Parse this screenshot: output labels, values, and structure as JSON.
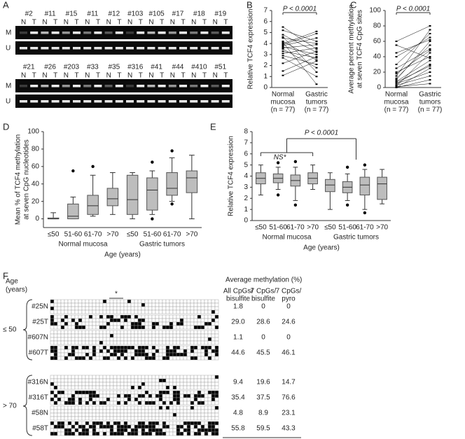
{
  "panel_labels": [
    "A",
    "B",
    "C",
    "D",
    "E",
    "F"
  ],
  "panel_a": {
    "samples_top": [
      "#2",
      "#11",
      "#15",
      "#11",
      "#12",
      "#103",
      "#105",
      "#17",
      "#18",
      "#19"
    ],
    "samples_bottom": [
      "#21",
      "#26",
      "#203",
      "#33",
      "#35",
      "#316",
      "#41",
      "#44",
      "#410",
      "#51"
    ],
    "lane_labels": [
      "N",
      "T"
    ],
    "row_labels": [
      "M",
      "U"
    ]
  },
  "chart_data": [
    {
      "type": "paired",
      "ylabel": [
        "Relative TCF4 expression"
      ],
      "annotation": "P < 0.0001",
      "categories": [
        [
          "Normal",
          "mucosa",
          "(n = 77)"
        ],
        [
          "Gastric",
          "tumors",
          "(n = 77)"
        ]
      ],
      "values": [
        [
          4.8,
          4.5,
          4.2,
          3.9,
          3.7,
          3.5,
          5.2,
          3.1,
          2.9,
          4.0,
          3.3,
          2.2,
          4.6,
          3.6,
          1.5,
          4.1,
          3.8,
          5.5,
          2.7,
          1.1
        ],
        [
          3.2,
          4.0,
          2.5,
          4.9,
          3.0,
          1.8,
          4.2,
          3.6,
          2.1,
          5.1,
          2.7,
          3.3,
          1.4,
          3.9,
          2.8,
          0.3,
          4.5,
          3.5,
          1.0,
          2.4
        ]
      ],
      "ylim": [
        0,
        7
      ],
      "yticks": [
        0,
        1,
        2,
        3,
        4,
        5,
        6,
        7
      ],
      "color": "#000000"
    },
    {
      "type": "paired",
      "ylabel": [
        "Average percent methylation",
        "at seven TCF4 CpG sites"
      ],
      "annotation": "P < 0.0001",
      "categories": [
        [
          "Normal",
          "mucosa",
          "(n = 77)"
        ],
        [
          "Gastric",
          "tumors",
          "(n = 77)"
        ]
      ],
      "values": [
        [
          2,
          5,
          10,
          0,
          15,
          25,
          3,
          40,
          8,
          0,
          20,
          60,
          12,
          5,
          30,
          1,
          18,
          45,
          7,
          55
        ],
        [
          45,
          30,
          60,
          25,
          75,
          50,
          15,
          65,
          35,
          10,
          40,
          80,
          55,
          20,
          70,
          5,
          48,
          62,
          28,
          38
        ]
      ],
      "ylim": [
        0,
        100
      ],
      "yticks": [
        0,
        20,
        40,
        60,
        80,
        100
      ],
      "color": "#000000"
    },
    {
      "type": "box",
      "ylabel": [
        "Mean % of TCF4 methylation",
        "at seven CpG nucleotides"
      ],
      "xlabel": "Age (years)",
      "categories": [
        "≤50",
        "51-60",
        "61-70",
        ">70",
        "≤50",
        "51-60",
        "61-70",
        ">70"
      ],
      "groups": [
        "Normal mucosa",
        "Gastric tumors"
      ],
      "boxes": [
        {
          "min": 0,
          "q1": 0,
          "median": 0,
          "q3": 1,
          "max": 7,
          "outliers": []
        },
        {
          "min": 0,
          "q1": 0,
          "median": 3,
          "q3": 17,
          "max": 25,
          "outliers": [
            55
          ]
        },
        {
          "min": 3,
          "q1": 5,
          "median": 15,
          "q3": 27,
          "max": 50,
          "outliers": [
            60
          ]
        },
        {
          "min": 5,
          "q1": 15,
          "median": 23,
          "q3": 35,
          "max": 53,
          "outliers": []
        },
        {
          "min": 0,
          "q1": 5,
          "median": 22,
          "q3": 50,
          "max": 53,
          "outliers": []
        },
        {
          "min": 5,
          "q1": 10,
          "median": 33,
          "q3": 47,
          "max": 55,
          "outliers": [
            0,
            65
          ]
        },
        {
          "min": 20,
          "q1": 27,
          "median": 35,
          "q3": 53,
          "max": 70,
          "outliers": [
            17,
            78
          ]
        },
        {
          "min": 0,
          "q1": 30,
          "median": 47,
          "q3": 55,
          "max": 73,
          "outliers": []
        }
      ],
      "ylim": [
        -10,
        100
      ],
      "yticks": [
        0,
        20,
        40,
        60,
        80,
        100
      ],
      "color": "#bdbdbd"
    },
    {
      "type": "box",
      "ylabel": [
        "Relative TCF4 expression"
      ],
      "xlabel": "Age (years)",
      "annotations": [
        "P < 0.0001",
        "NS*"
      ],
      "categories": [
        "≤50",
        "51-60",
        "61-70",
        ">70",
        "≤50",
        "51-60",
        "61-70",
        ">70"
      ],
      "groups": [
        "Normal mucosa",
        "Gastric tumors"
      ],
      "boxes": [
        {
          "min": 2.3,
          "q1": 3.3,
          "median": 3.8,
          "q3": 4.3,
          "max": 5.0,
          "outliers": []
        },
        {
          "min": 2.8,
          "q1": 3.4,
          "median": 3.8,
          "q3": 4.2,
          "max": 4.8,
          "outliers": [
            2.3,
            5.2
          ]
        },
        {
          "min": 1.8,
          "q1": 3.1,
          "median": 3.6,
          "q3": 4.1,
          "max": 4.8,
          "outliers": [
            1.4,
            5.3
          ]
        },
        {
          "min": 2.8,
          "q1": 3.3,
          "median": 3.8,
          "q3": 4.3,
          "max": 5.0,
          "outliers": []
        },
        {
          "min": 1.0,
          "q1": 2.6,
          "median": 3.2,
          "q3": 3.7,
          "max": 4.3,
          "outliers": []
        },
        {
          "min": 1.8,
          "q1": 2.5,
          "median": 3.0,
          "q3": 3.5,
          "max": 4.2,
          "outliers": [
            1.4,
            4.8
          ]
        },
        {
          "min": 1.0,
          "q1": 2.3,
          "median": 3.2,
          "q3": 3.9,
          "max": 4.6,
          "outliers": [
            0.7,
            5.0
          ]
        },
        {
          "min": 1.5,
          "q1": 1.9,
          "median": 3.3,
          "q3": 3.9,
          "max": 4.6,
          "outliers": []
        }
      ],
      "ylim": [
        0,
        8
      ],
      "yticks": [
        0,
        1,
        2,
        3,
        4,
        5,
        6,
        7,
        8
      ],
      "color": "#bdbdbd"
    }
  ],
  "panel_f": {
    "age_label": [
      "Age",
      "(years)"
    ],
    "groups": [
      "≤ 50",
      "> 70"
    ],
    "asterisk": "*",
    "table_title": "Average methylation (%)",
    "columns": [
      [
        "All CpGs/",
        "bisulfite"
      ],
      [
        "7 CpGs/",
        "bisulfite"
      ],
      [
        "7 CpGs/",
        "pyro"
      ]
    ],
    "rows": [
      [
        "#25N",
        "1.8",
        "0",
        "0"
      ],
      [
        "#25T",
        "29.0",
        "28.6",
        "24.6"
      ],
      [
        "#607N",
        "1.1",
        "0",
        "0"
      ],
      [
        "#607T",
        "44.6",
        "45.5",
        "46.1"
      ],
      [
        "#316N",
        "9.4",
        "19.6",
        "14.7"
      ],
      [
        "#316T",
        "35.4",
        "37.5",
        "76.6"
      ],
      [
        "#58N",
        "4.8",
        "8.9",
        "23.1"
      ],
      [
        "#58T",
        "55.8",
        "59.5",
        "43.3"
      ]
    ]
  }
}
